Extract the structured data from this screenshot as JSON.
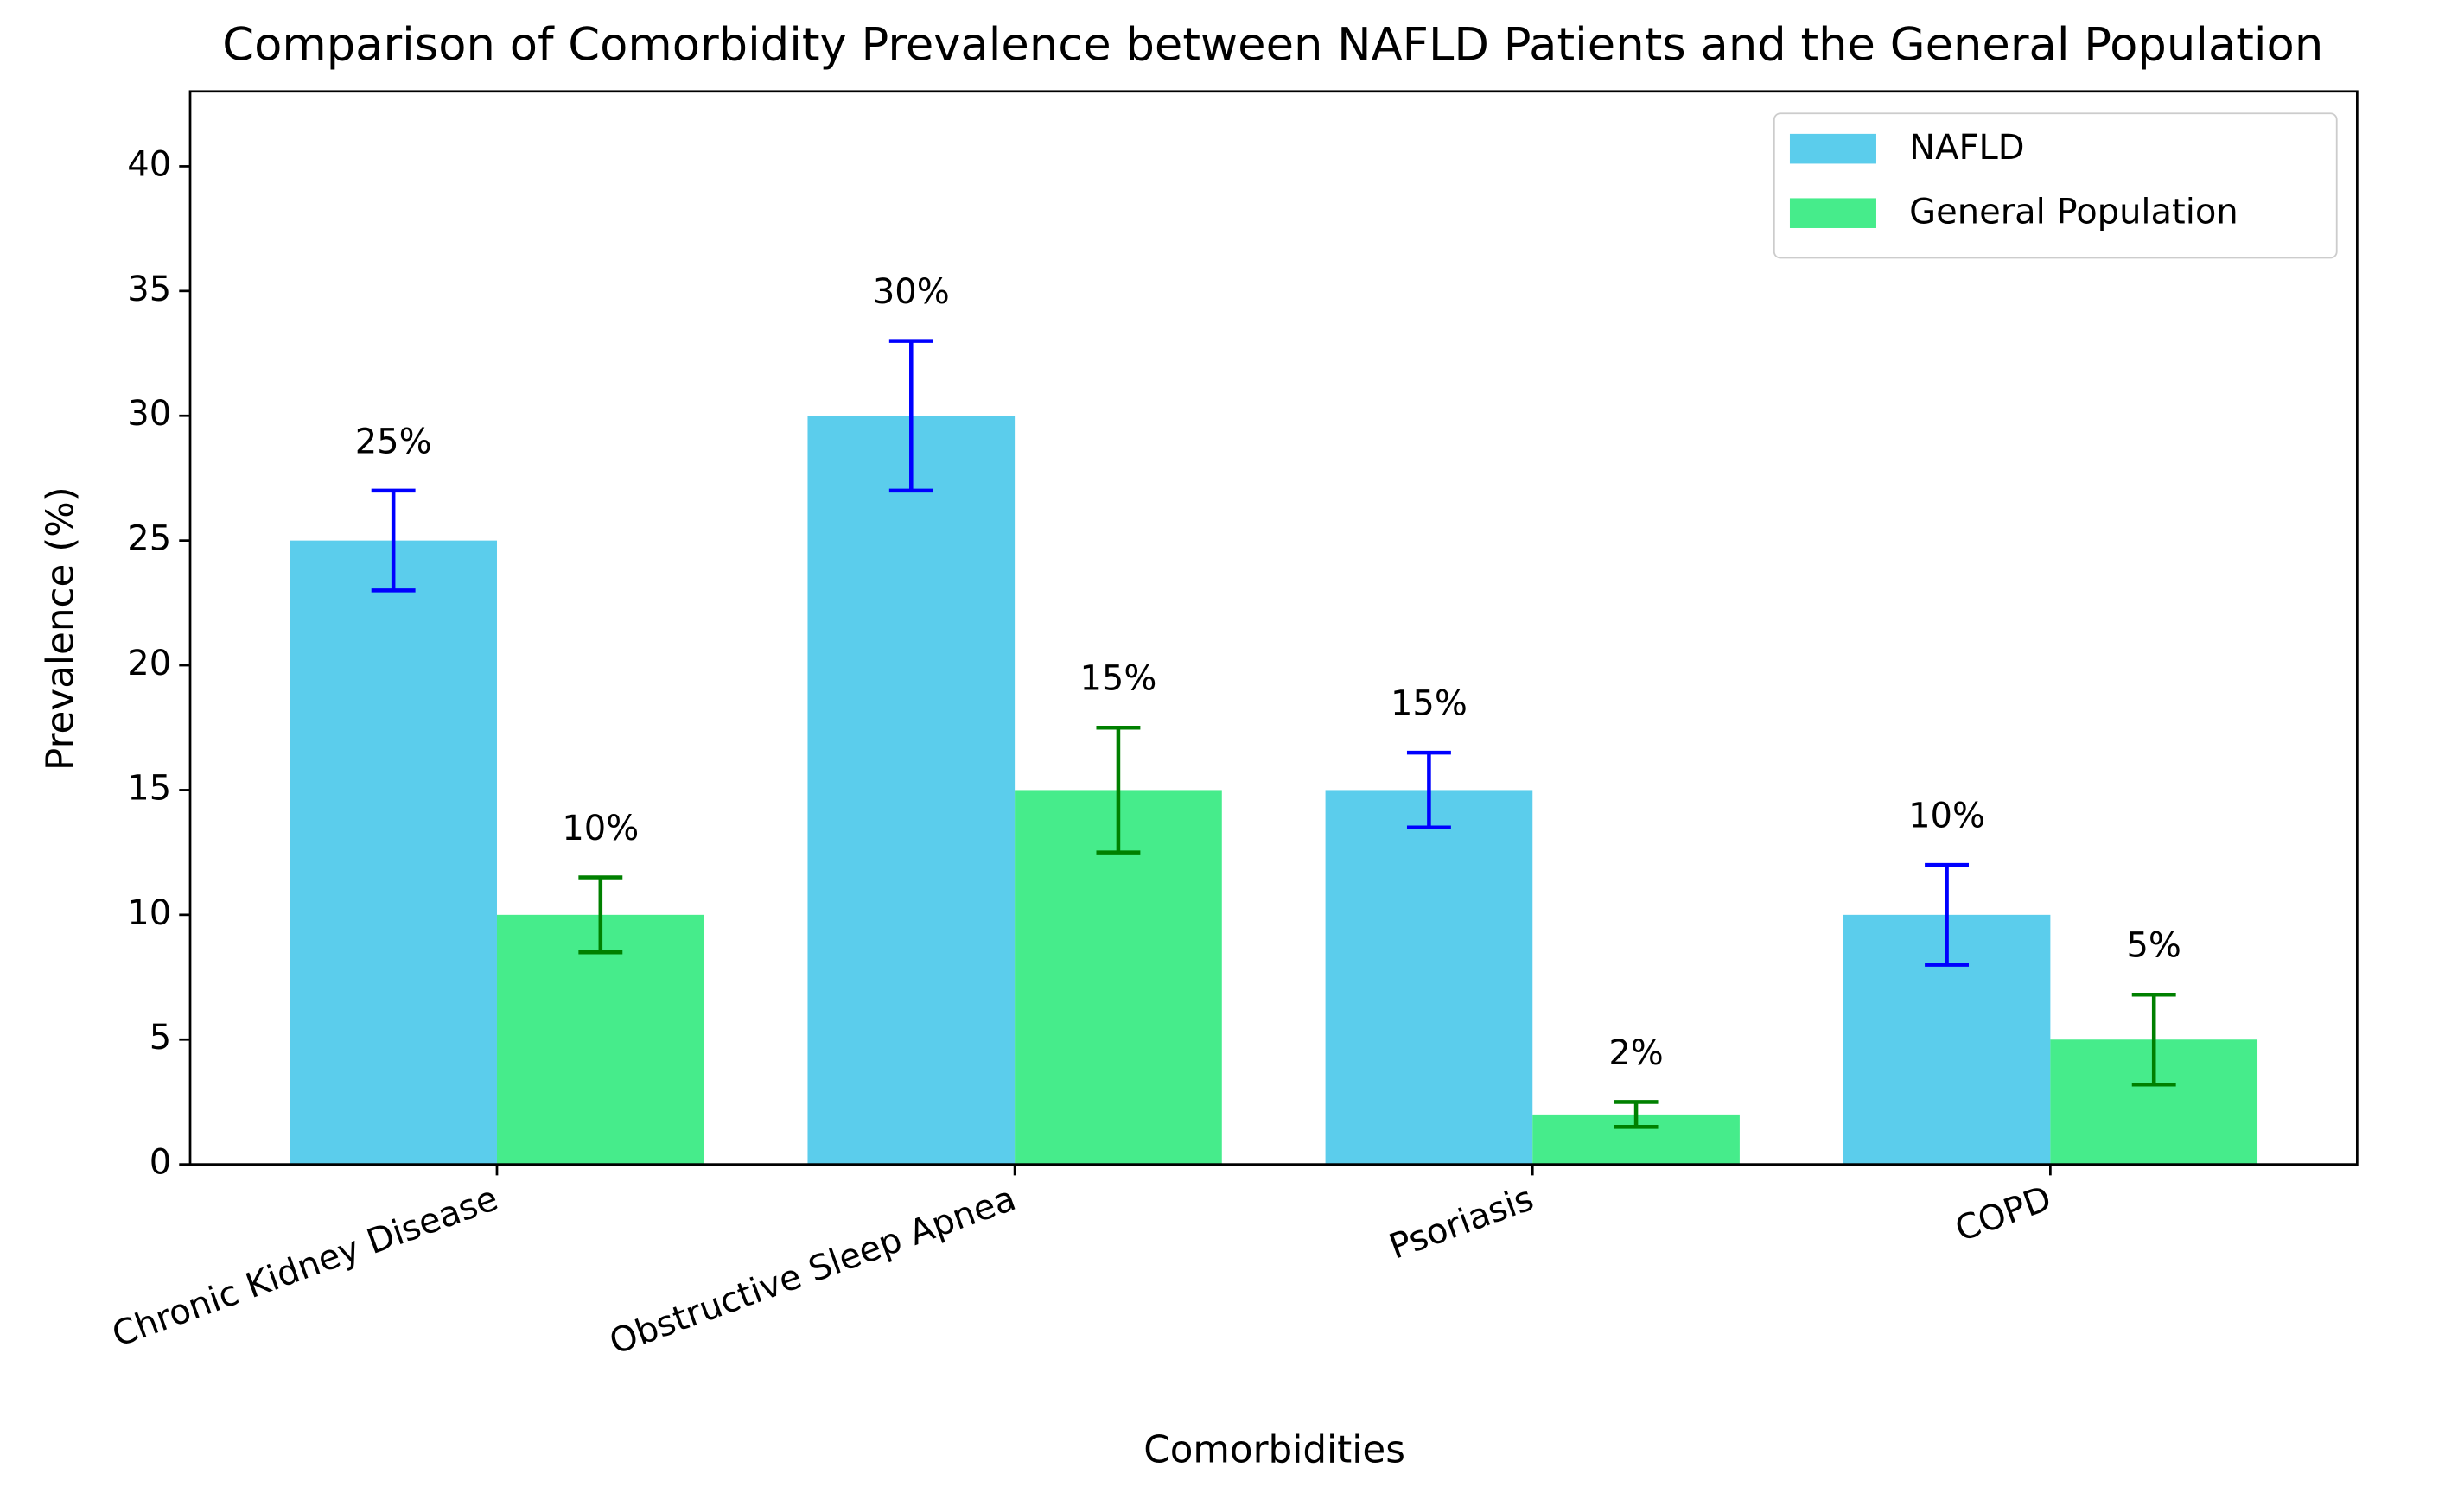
{
  "chart_data": {
    "type": "bar",
    "title": "Comparison of Comorbidity Prevalence between NAFLD Patients and the General Population",
    "x_label": "Comorbidities",
    "y_label": "Prevalence (%)",
    "categories": [
      "Chronic Kidney Disease",
      "Obstructive Sleep Apnea",
      "Psoriasis",
      "COPD"
    ],
    "series": [
      {
        "name": "NAFLD",
        "color": "#5bcdec",
        "error_color": "#0000ff",
        "values": [
          25,
          30,
          15,
          10
        ],
        "errors": [
          2,
          3,
          1.5,
          2
        ],
        "value_labels": [
          "25%",
          "30%",
          "15%",
          "10%"
        ]
      },
      {
        "name": "General Population",
        "color": "#46ec8b",
        "error_color": "#008000",
        "values": [
          10,
          15,
          2,
          5
        ],
        "errors": [
          1.5,
          2.5,
          0.5,
          1.8
        ],
        "value_labels": [
          "10%",
          "15%",
          "2%",
          "5%"
        ]
      }
    ],
    "ylim": [
      0,
      43
    ],
    "yticks": [
      0,
      5,
      10,
      15,
      20,
      25,
      30,
      35,
      40
    ],
    "grid": false,
    "legend": "upper right"
  }
}
